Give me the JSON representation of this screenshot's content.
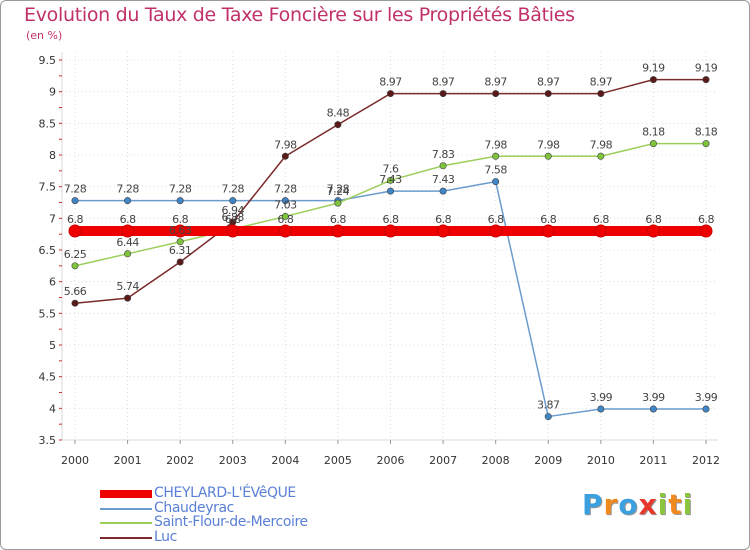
{
  "title": "Evolution du Taux de Taxe Foncière sur les Propriétés Bâties",
  "subtitle": "(en %)",
  "logo": {
    "letters": [
      "P",
      "r",
      "o",
      "x",
      "i",
      "t",
      "i"
    ],
    "colors": [
      "#3aa0e0",
      "#f08a1c",
      "#3aa0e0",
      "#e8382b",
      "#8cc63f",
      "#f08a1c",
      "#8cc63f"
    ]
  },
  "chart_data": {
    "type": "line",
    "title": "Evolution du Taux de Taxe Foncière sur les Propriétés Bâties",
    "ylabel": "(en %)",
    "xlabel": "",
    "ylim": [
      3.5,
      9.5
    ],
    "yticks": [
      "3.5",
      "4",
      "4.5",
      "5",
      "5.5",
      "6",
      "6.5",
      "7",
      "7.5",
      "8",
      "8.5",
      "9",
      "9.5"
    ],
    "categories": [
      "2000",
      "2001",
      "2002",
      "2003",
      "2004",
      "2005",
      "2006",
      "2007",
      "2008",
      "2009",
      "2010",
      "2011",
      "2012"
    ],
    "grid": true,
    "series": [
      {
        "name": "CHEYLARD-L'ÉVêQUE",
        "color": "#ee0000",
        "values": [
          6.8,
          6.8,
          6.8,
          6.8,
          6.8,
          6.8,
          6.8,
          6.8,
          6.8,
          6.8,
          6.8,
          6.8,
          6.8
        ],
        "labels": [
          "6.8",
          "6.8",
          "6.8",
          "6.8",
          "6.8",
          "6.8",
          "6.8",
          "6.8",
          "6.8",
          "6.8",
          "6.8",
          "6.8",
          "6.8"
        ]
      },
      {
        "name": "Chaudeyrac",
        "color": "#6a9ccd",
        "values": [
          7.28,
          7.28,
          7.28,
          7.28,
          7.28,
          7.28,
          7.43,
          7.43,
          7.58,
          3.87,
          3.99,
          3.99,
          3.99
        ],
        "labels": [
          "7.28",
          "7.28",
          "7.28",
          "7.28",
          "7.28",
          "7.28",
          "7.43",
          "7.43",
          "7.58",
          "3.87",
          "3.99",
          "3.99",
          "3.99"
        ]
      },
      {
        "name": "Saint-Flour-de-Mercoire",
        "color": "#9ccf5a",
        "values": [
          6.25,
          6.44,
          6.63,
          6.83,
          7.03,
          7.24,
          7.6,
          7.83,
          7.98,
          7.98,
          7.98,
          8.18,
          8.18
        ],
        "labels": [
          "6.25",
          "6.44",
          "6.63",
          "6.83",
          "7.03",
          "7.24",
          "7.6",
          "7.83",
          "7.98",
          "7.98",
          "7.98",
          "8.18",
          "8.18"
        ]
      },
      {
        "name": "Luc",
        "color": "#7a2a2a",
        "values": [
          5.66,
          5.74,
          6.31,
          6.94,
          7.98,
          8.48,
          8.97,
          8.97,
          8.97,
          8.97,
          8.97,
          9.19,
          9.19
        ],
        "labels": [
          "5.66",
          "5.74",
          "6.31",
          "6.94",
          "7.98",
          "8.48",
          "8.97",
          "8.97",
          "8.97",
          "8.97",
          "8.97",
          "9.19",
          "9.19"
        ]
      }
    ]
  }
}
